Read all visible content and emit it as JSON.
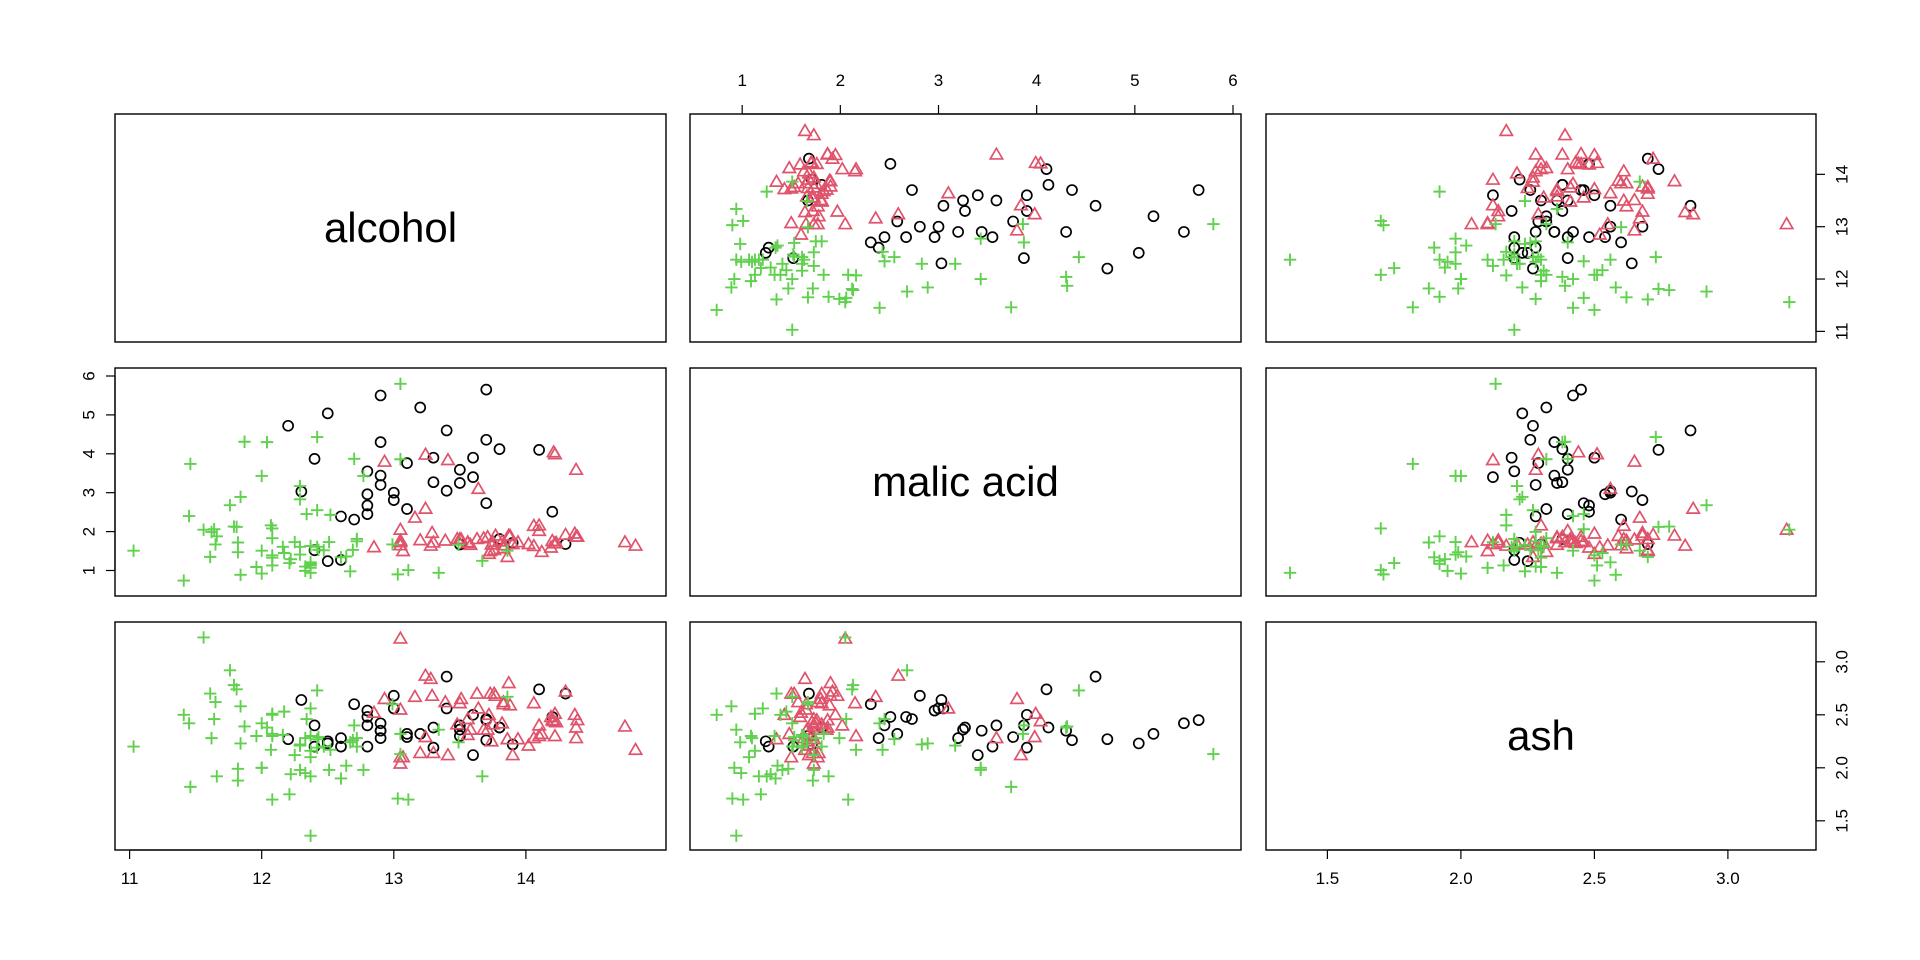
{
  "chart_data": {
    "type": "scatter",
    "variables": [
      "alcohol",
      "malic acid",
      "ash"
    ],
    "axes": {
      "alcohol": {
        "range": [
          10.95,
          15.0
        ],
        "ticks": [
          11,
          12,
          13,
          14
        ]
      },
      "malic acid": {
        "range": [
          0.55,
          6.0
        ],
        "ticks": [
          1,
          2,
          3,
          4,
          5,
          6
        ]
      },
      "ash": {
        "range": [
          1.3,
          3.3
        ],
        "ticks": [
          1.5,
          2.0,
          2.5,
          3.0
        ]
      }
    },
    "tick_labels": {
      "alcohol": [
        "11",
        "12",
        "13",
        "14"
      ],
      "malic acid": [
        "1",
        "2",
        "3",
        "4",
        "5",
        "6"
      ],
      "ash": [
        "1.5",
        "2.0",
        "2.5",
        "3.0"
      ]
    },
    "colors": {
      "class_1": "#000000",
      "class_2": "#DF536B",
      "class_3": "#61D04F"
    },
    "markers": {
      "class_1": "circle",
      "class_2": "triangle",
      "class_3": "plus"
    },
    "grid": false,
    "series": [
      {
        "marker": "circle",
        "color": "#000000",
        "points": [
          [
            14.1,
            4.1,
            2.74
          ],
          [
            13.4,
            4.6,
            2.86
          ],
          [
            12.9,
            5.5,
            2.42
          ],
          [
            13.7,
            5.65,
            2.45
          ],
          [
            12.5,
            5.04,
            2.23
          ],
          [
            13.2,
            5.19,
            2.32
          ],
          [
            13.8,
            4.12,
            2.38
          ],
          [
            12.3,
            3.03,
            2.64
          ],
          [
            12.4,
            3.87,
            2.4
          ],
          [
            12.6,
            1.27,
            2.2
          ],
          [
            12.8,
            3.55,
            2.2
          ],
          [
            13.6,
            3.9,
            2.5
          ],
          [
            12.9,
            4.3,
            2.35
          ],
          [
            13.5,
            3.25,
            2.36
          ],
          [
            13.3,
            3.27,
            2.38
          ],
          [
            12.2,
            4.72,
            2.27
          ],
          [
            13.7,
            4.36,
            2.26
          ],
          [
            13.1,
            3.76,
            2.29
          ],
          [
            13.0,
            2.81,
            2.68
          ],
          [
            13.5,
            3.59,
            2.4
          ],
          [
            14.3,
            1.68,
            2.7
          ],
          [
            13.8,
            1.81,
            2.38
          ],
          [
            13.5,
            1.67,
            2.3
          ],
          [
            12.8,
            2.67,
            2.48
          ],
          [
            12.9,
            3.44,
            2.35
          ],
          [
            12.7,
            2.31,
            2.6
          ],
          [
            13.9,
            1.71,
            2.22
          ],
          [
            12.6,
            2.39,
            2.28
          ],
          [
            13.6,
            3.4,
            2.12
          ],
          [
            13.0,
            3.0,
            2.56
          ],
          [
            13.7,
            2.73,
            2.46
          ],
          [
            12.4,
            1.52,
            2.2
          ],
          [
            12.8,
            2.96,
            2.54
          ],
          [
            13.1,
            2.58,
            2.32
          ],
          [
            14.2,
            2.51,
            2.48
          ],
          [
            12.9,
            3.2,
            2.28
          ],
          [
            12.5,
            1.24,
            2.25
          ],
          [
            13.3,
            3.9,
            2.19
          ],
          [
            12.8,
            2.45,
            2.4
          ],
          [
            13.4,
            3.05,
            2.56
          ]
        ]
      },
      {
        "marker": "triangle",
        "color": "#DF536B",
        "points": [
          [
            14.23,
            1.71,
            2.43
          ],
          [
            13.2,
            1.78,
            2.14
          ],
          [
            13.16,
            2.36,
            2.67
          ],
          [
            14.37,
            1.95,
            2.5
          ],
          [
            13.24,
            2.59,
            2.87
          ],
          [
            14.2,
            1.76,
            2.45
          ],
          [
            14.39,
            1.87,
            2.45
          ],
          [
            14.06,
            2.15,
            2.61
          ],
          [
            14.83,
            1.64,
            2.17
          ],
          [
            13.86,
            1.35,
            2.27
          ],
          [
            14.1,
            2.16,
            2.3
          ],
          [
            14.12,
            1.48,
            2.32
          ],
          [
            13.75,
            1.73,
            2.41
          ],
          [
            14.75,
            1.73,
            2.39
          ],
          [
            14.38,
            1.87,
            2.38
          ],
          [
            13.63,
            1.81,
            2.7
          ],
          [
            14.3,
            1.92,
            2.72
          ],
          [
            13.83,
            1.57,
            2.62
          ],
          [
            14.19,
            1.59,
            2.48
          ],
          [
            13.64,
            3.1,
            2.56
          ],
          [
            14.06,
            1.63,
            2.28
          ],
          [
            12.93,
            3.8,
            2.65
          ],
          [
            13.71,
            1.86,
            2.36
          ],
          [
            12.85,
            1.6,
            2.52
          ],
          [
            13.5,
            1.81,
            2.61
          ],
          [
            13.05,
            2.05,
            3.22
          ],
          [
            13.39,
            1.77,
            2.62
          ],
          [
            13.3,
            1.72,
            2.14
          ],
          [
            13.87,
            1.9,
            2.8
          ],
          [
            14.02,
            1.68,
            2.21
          ],
          [
            13.73,
            1.5,
            2.7
          ],
          [
            13.58,
            1.66,
            2.36
          ],
          [
            13.68,
            1.83,
            2.36
          ],
          [
            13.76,
            1.53,
            2.7
          ],
          [
            13.51,
            1.8,
            2.65
          ],
          [
            13.48,
            1.81,
            2.41
          ],
          [
            13.28,
            1.64,
            2.84
          ],
          [
            13.05,
            1.65,
            2.55
          ],
          [
            13.07,
            1.5,
            2.1
          ],
          [
            14.22,
            3.99,
            2.51
          ],
          [
            13.56,
            1.71,
            2.31
          ],
          [
            13.41,
            3.84,
            2.12
          ],
          [
            13.88,
            1.89,
            2.59
          ],
          [
            13.24,
            3.98,
            2.29
          ],
          [
            13.05,
            1.77,
            2.1
          ],
          [
            14.21,
            4.04,
            2.44
          ],
          [
            14.38,
            3.59,
            2.28
          ],
          [
            13.9,
            1.68,
            2.12
          ],
          [
            14.1,
            2.02,
            2.4
          ],
          [
            13.94,
            1.73,
            2.27
          ],
          [
            13.05,
            1.73,
            2.04
          ],
          [
            13.83,
            1.65,
            2.6
          ],
          [
            13.82,
            1.75,
            2.42
          ],
          [
            13.77,
            1.9,
            2.68
          ],
          [
            13.74,
            1.67,
            2.25
          ],
          [
            13.56,
            1.73,
            2.46
          ],
          [
            14.22,
            1.7,
            2.3
          ],
          [
            13.29,
            1.97,
            2.68
          ],
          [
            13.72,
            1.43,
            2.5
          ]
        ]
      },
      {
        "marker": "plus",
        "color": "#61D04F",
        "points": [
          [
            12.37,
            0.94,
            1.36
          ],
          [
            12.33,
            1.1,
            2.28
          ],
          [
            12.64,
            1.36,
            2.02
          ],
          [
            13.67,
            1.25,
            1.92
          ],
          [
            12.37,
            1.13,
            2.16
          ],
          [
            12.17,
            1.45,
            2.53
          ],
          [
            12.37,
            1.21,
            2.56
          ],
          [
            13.11,
            1.01,
            1.7
          ],
          [
            12.37,
            1.17,
            1.92
          ],
          [
            13.34,
            0.94,
            2.36
          ],
          [
            12.21,
            1.19,
            1.75
          ],
          [
            12.29,
            1.61,
            2.21
          ],
          [
            13.86,
            1.51,
            2.67
          ],
          [
            13.49,
            1.66,
            2.24
          ],
          [
            12.99,
            1.67,
            2.6
          ],
          [
            11.96,
            1.09,
            2.3
          ],
          [
            11.66,
            1.88,
            1.92
          ],
          [
            13.03,
            0.9,
            1.71
          ],
          [
            11.84,
            2.89,
            2.23
          ],
          [
            12.33,
            0.99,
            1.95
          ],
          [
            12.7,
            3.87,
            2.4
          ],
          [
            12.0,
            0.92,
            2.0
          ],
          [
            12.72,
            1.81,
            2.2
          ],
          [
            12.08,
            1.13,
            2.51
          ],
          [
            13.05,
            3.86,
            2.32
          ],
          [
            11.84,
            0.89,
            2.58
          ],
          [
            12.67,
            0.98,
            2.24
          ],
          [
            12.16,
            1.61,
            2.31
          ],
          [
            11.65,
            1.67,
            2.62
          ],
          [
            11.64,
            2.06,
            2.46
          ],
          [
            12.08,
            1.33,
            2.3
          ],
          [
            12.08,
            1.83,
            2.32
          ],
          [
            12.0,
            1.51,
            2.42
          ],
          [
            12.69,
            1.53,
            2.26
          ],
          [
            12.29,
            2.83,
            2.22
          ],
          [
            11.62,
            1.99,
            2.28
          ],
          [
            12.47,
            1.52,
            2.2
          ],
          [
            11.81,
            2.12,
            2.74
          ],
          [
            12.29,
            1.41,
            1.98
          ],
          [
            12.37,
            1.07,
            2.1
          ],
          [
            12.29,
            3.17,
            2.21
          ],
          [
            12.08,
            2.08,
            1.7
          ],
          [
            12.6,
            1.34,
            1.9
          ],
          [
            12.34,
            2.45,
            2.46
          ],
          [
            11.82,
            1.72,
            1.88
          ],
          [
            12.51,
            1.73,
            1.98
          ],
          [
            12.42,
            2.55,
            2.27
          ],
          [
            12.25,
            1.73,
            2.12
          ],
          [
            12.72,
            1.75,
            2.28
          ],
          [
            12.22,
            1.29,
            1.94
          ],
          [
            11.61,
            1.35,
            2.7
          ],
          [
            11.46,
            3.74,
            1.82
          ],
          [
            12.52,
            2.43,
            2.17
          ],
          [
            11.76,
            2.68,
            2.92
          ],
          [
            11.41,
            0.74,
            2.5
          ],
          [
            12.08,
            1.39,
            2.5
          ],
          [
            11.03,
            1.51,
            2.2
          ],
          [
            11.82,
            1.47,
            1.99
          ],
          [
            12.42,
            1.61,
            2.19
          ],
          [
            12.77,
            3.43,
            1.98
          ],
          [
            12.0,
            3.43,
            2.0
          ],
          [
            11.45,
            2.4,
            2.42
          ],
          [
            11.56,
            2.05,
            3.23
          ],
          [
            12.42,
            4.43,
            2.73
          ],
          [
            13.05,
            5.8,
            2.13
          ],
          [
            11.87,
            4.31,
            2.39
          ],
          [
            12.07,
            2.16,
            2.17
          ],
          [
            12.43,
            1.53,
            2.29
          ],
          [
            11.79,
            2.13,
            2.78
          ],
          [
            12.37,
            1.63,
            2.3
          ],
          [
            12.04,
            4.3,
            2.38
          ]
        ]
      }
    ]
  }
}
